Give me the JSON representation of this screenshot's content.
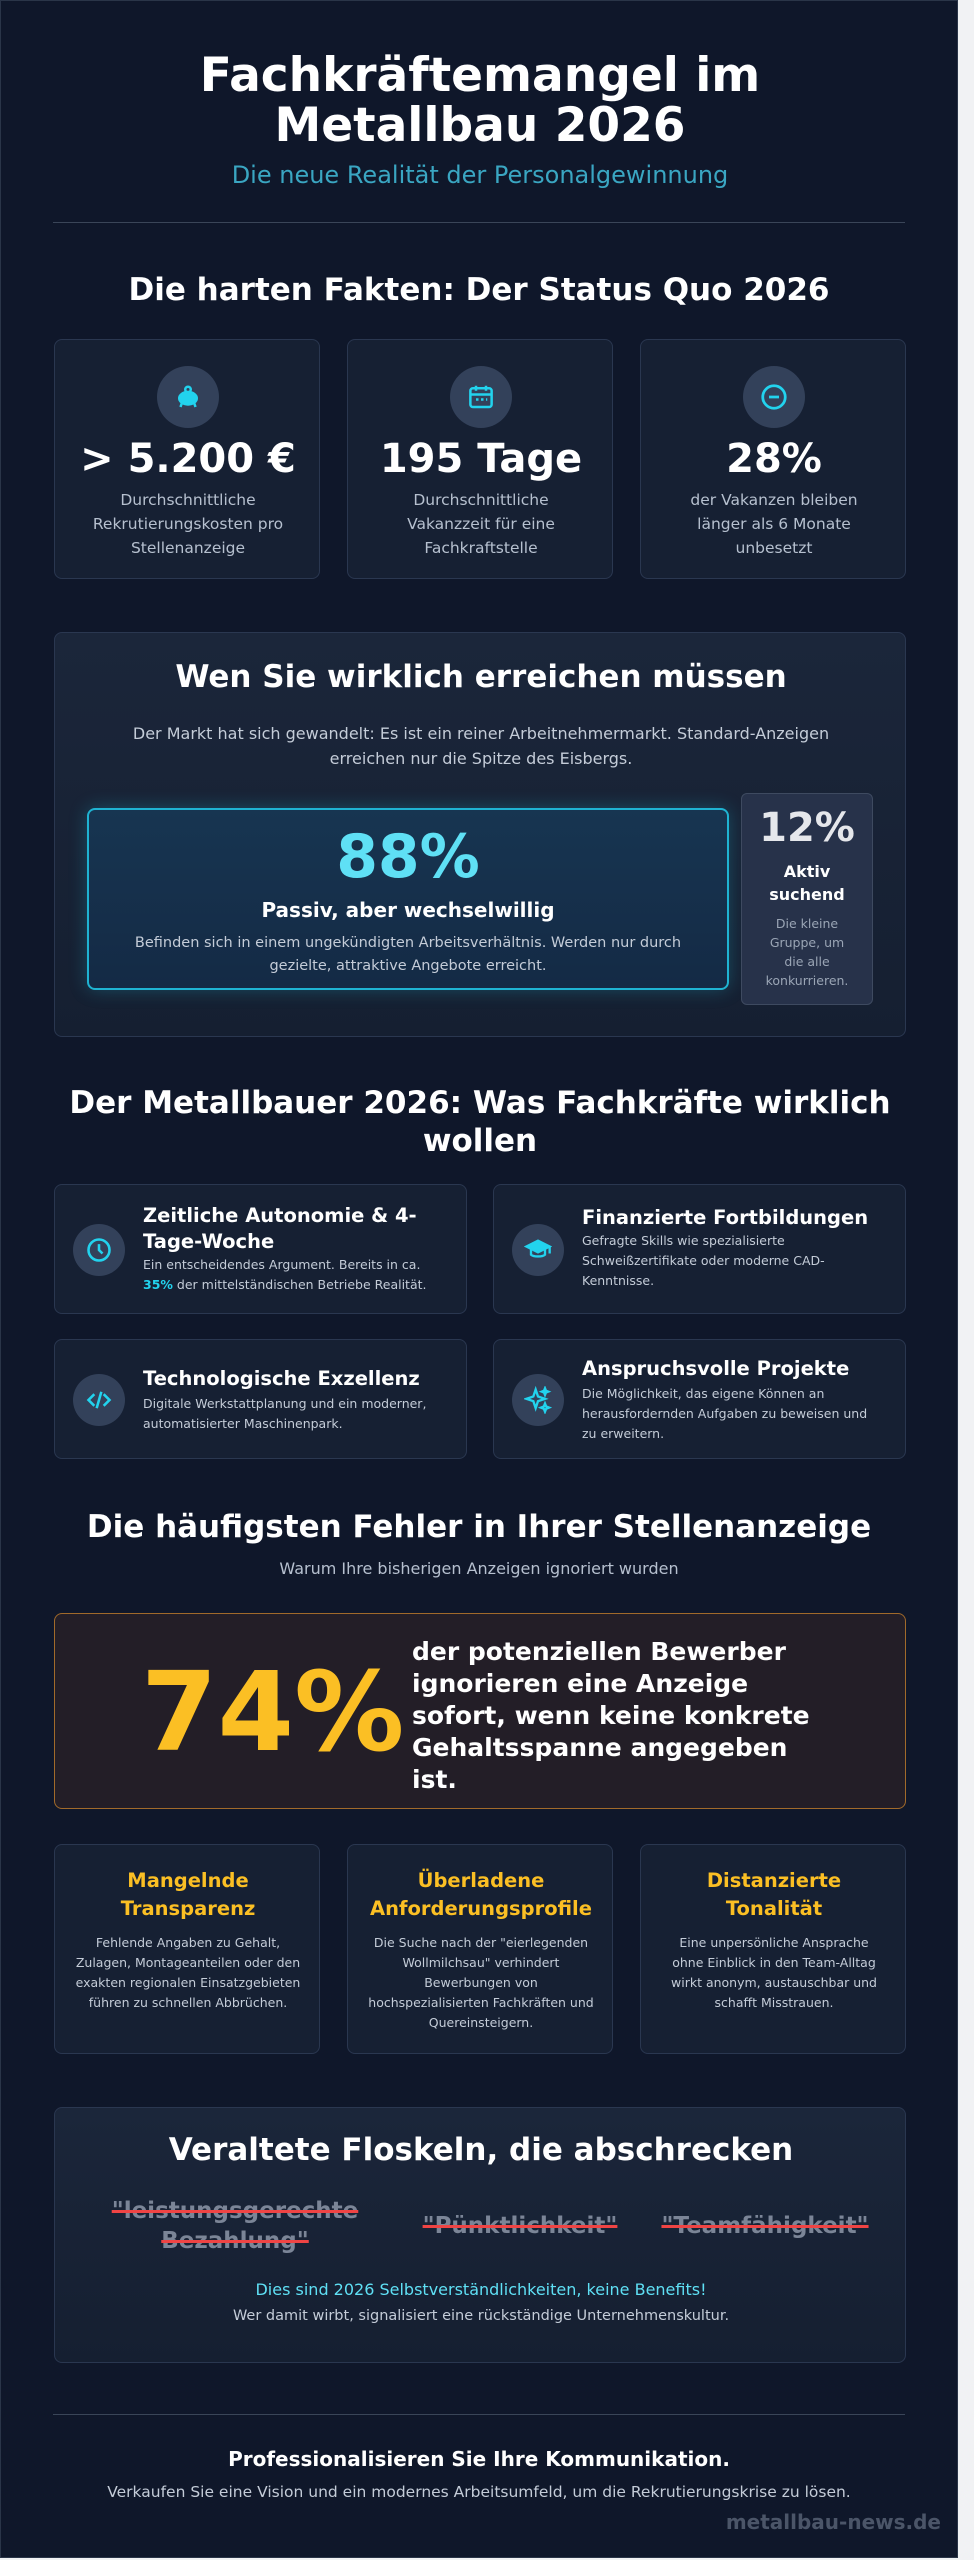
{
  "header": {
    "title": "Fachkräftemangel im Metallbau 2026",
    "subtitle": "Die neue Realität der Personalgewinnung"
  },
  "facts": {
    "heading": "Die harten Fakten: Der Status Quo 2026",
    "cards": [
      {
        "icon": "piggy-bank-icon",
        "value": "> 5.200 €",
        "text": "Durchschnittliche Rekrutierungskosten pro Stellenanzeige"
      },
      {
        "icon": "calendar-icon",
        "value": "195 Tage",
        "text": "Durchschnittliche Vakanzzeit für eine Fachkraftstelle"
      },
      {
        "icon": "minus-circle-icon",
        "value": "28%",
        "text": "der Vakanzen bleiben länger als 6 Monate unbesetzt"
      }
    ]
  },
  "reach": {
    "heading": "Wen Sie wirklich erreichen müssen",
    "intro": "Der Markt hat sich gewandelt: Es ist ein reiner Arbeitnehmermarkt. Standard-Anzeigen erreichen nur die Spitze des Eisbergs.",
    "passive": {
      "value": "88%",
      "label": "Passiv, aber wechselwillig",
      "text": "Befinden sich in einem ungekündigten Arbeitsverhältnis. Werden nur durch gezielte, attraktive Angebote erreicht.",
      "share": 88
    },
    "active": {
      "value": "12%",
      "label": "Aktiv suchend",
      "text": "Die kleine Gruppe, um die alle konkurrieren.",
      "share": 12
    }
  },
  "wants": {
    "heading": "Der Metallbauer 2026: Was Fachkräfte wirklich wollen",
    "items": [
      {
        "icon": "clock-icon",
        "title": "Zeitliche Autonomie & 4-Tage-Woche",
        "text_before": "Ein entscheidendes Argument. Bereits in ca.",
        "highlight": "35%",
        "text_after": "der mittelständischen Betriebe Realität."
      },
      {
        "icon": "graduation-cap-icon",
        "title": "Finanzierte Fortbildungen",
        "text": "Gefragte Skills wie spezialisierte Schweißzertifikate oder moderne CAD-Kenntnisse."
      },
      {
        "icon": "code-icon",
        "title": "Technologische Exzellenz",
        "text": "Digitale Werkstattplanung und ein moderner, automatisierter Maschinenpark."
      },
      {
        "icon": "sparkles-icon",
        "title": "Anspruchsvolle Projekte",
        "text": "Die Möglichkeit, das eigene Können an herausfordernden Aufgaben zu beweisen und zu erweitern."
      }
    ]
  },
  "mistakes": {
    "heading": "Die häufigsten Fehler in Ihrer Stellenanzeige",
    "subheading": "Warum Ihre bisherigen Anzeigen ignoriert wurden",
    "stat_value": "74%",
    "stat_text": "der potenziellen Bewerber ignorieren eine Anzeige sofort, wenn keine konkrete Gehaltsspanne angegeben ist.",
    "cards": [
      {
        "title": "Mangelnde Transparenz",
        "text": "Fehlende Angaben zu Gehalt, Zulagen, Montageanteilen oder den exakten regionalen Einsatzgebieten führen zu schnellen Abbrüchen."
      },
      {
        "title": "Überladene Anforderungsprofile",
        "text": "Die Suche nach der \"eierlegenden Wollmilchsau\" verhindert Bewerbungen von hochspezialisierten Fachkräften und Quereinsteigern."
      },
      {
        "title": "Distanzierte Tonalität",
        "text": "Eine unpersönliche Ansprache ohne Einblick in den Team-Alltag wirkt anonym, austauschbar und schafft Misstrauen."
      }
    ]
  },
  "phrases": {
    "heading": "Veraltete Floskeln, die abschrecken",
    "items": [
      "\"leistungsgerechte Bezahlung\"",
      "\"Pünktlichkeit\"",
      "\"Teamfähigkeit\""
    ],
    "note": "Dies sind 2026 Selbstverständlichkeiten, keine Benefits!",
    "subnote": "Wer damit wirbt, signalisiert eine rückständige Unternehmenskultur."
  },
  "footer": {
    "title": "Professionalisieren Sie Ihre Kommunikation.",
    "text": "Verkaufen Sie eine Vision und ein modernes Arbeitsumfeld, um die Rekrutierungskrise zu lösen.",
    "brand": "metallbau-news.de"
  },
  "colors": {
    "background": "#0f172a",
    "accent_cyan": "#22d3ee",
    "accent_yellow": "#fbbf24",
    "strike_red": "#ef4444"
  }
}
